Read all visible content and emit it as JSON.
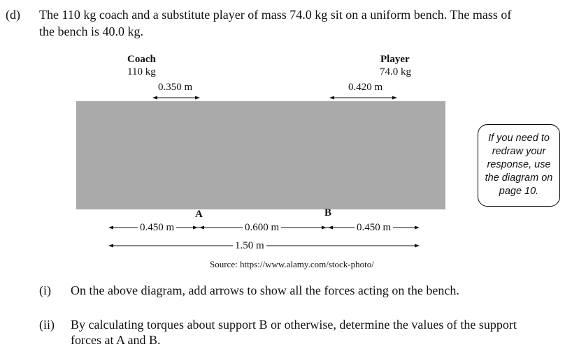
{
  "question": {
    "part_label": "(d)",
    "line1": "The 110 kg coach and a substitute player of mass 74.0 kg sit on a uniform bench. The mass of",
    "line2": "the bench is 40.0 kg."
  },
  "diagram": {
    "coach_title": "Coach",
    "coach_mass": "110 kg",
    "coach_distance": "0.350 m",
    "player_title": "Player",
    "player_mass": "74.0 kg",
    "player_distance": "0.420 m",
    "support_a": "A",
    "support_b": "B",
    "dim_left": "0.450 m",
    "dim_middle": "0.600 m",
    "dim_right": "0.450 m",
    "dim_total": "1.50 m",
    "source": "Source: https://www.alamy.com/stock-photo/",
    "bench_color": "#aaaaaa"
  },
  "note": {
    "lines": [
      "If you need to",
      "redraw your",
      "response, use",
      "the diagram on",
      "page 10."
    ]
  },
  "subquestions": [
    {
      "label": "(i)",
      "lines": [
        "On the above diagram, add arrows to show all the forces acting on the bench."
      ]
    },
    {
      "label": "(ii)",
      "lines": [
        "By calculating torques about support B or otherwise, determine the values of the support",
        "forces at A and B."
      ]
    }
  ]
}
